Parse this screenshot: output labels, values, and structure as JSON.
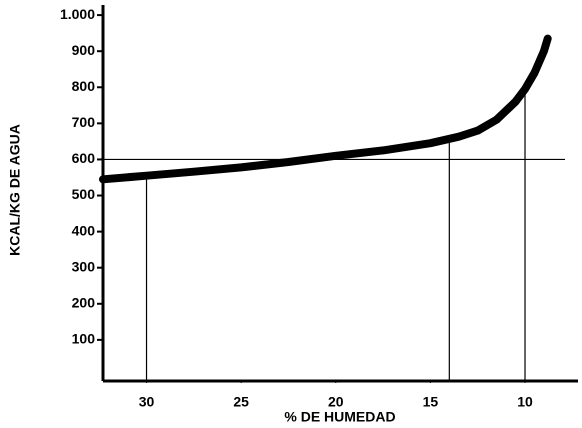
{
  "chart_data": {
    "type": "line",
    "x_label": "% DE HUMEDAD",
    "y_label": "KCAL/KG DE AGUA",
    "x": [
      32.3,
      30,
      27.5,
      25,
      22.5,
      20,
      17.5,
      15,
      13.5,
      12.5,
      11.5,
      10.5,
      10,
      9.5,
      9,
      8.8
    ],
    "series": [
      {
        "color": "#000000",
        "values": [
          545,
          555,
          566,
          578,
          593,
          610,
          625,
          645,
          663,
          680,
          710,
          760,
          795,
          840,
          900,
          935
        ]
      }
    ],
    "xlim": [
      32.3,
      7.2
    ],
    "xticks": [
      30,
      25,
      20,
      15,
      10
    ],
    "ylim": [
      -14,
      1028
    ],
    "yticks": [
      100,
      200,
      300,
      400,
      500,
      600,
      700,
      800,
      900,
      {
        "value": 1000,
        "label": "1.000"
      }
    ],
    "reference_lines": {
      "y": [
        600
      ],
      "x": [
        30,
        14,
        10
      ]
    }
  }
}
